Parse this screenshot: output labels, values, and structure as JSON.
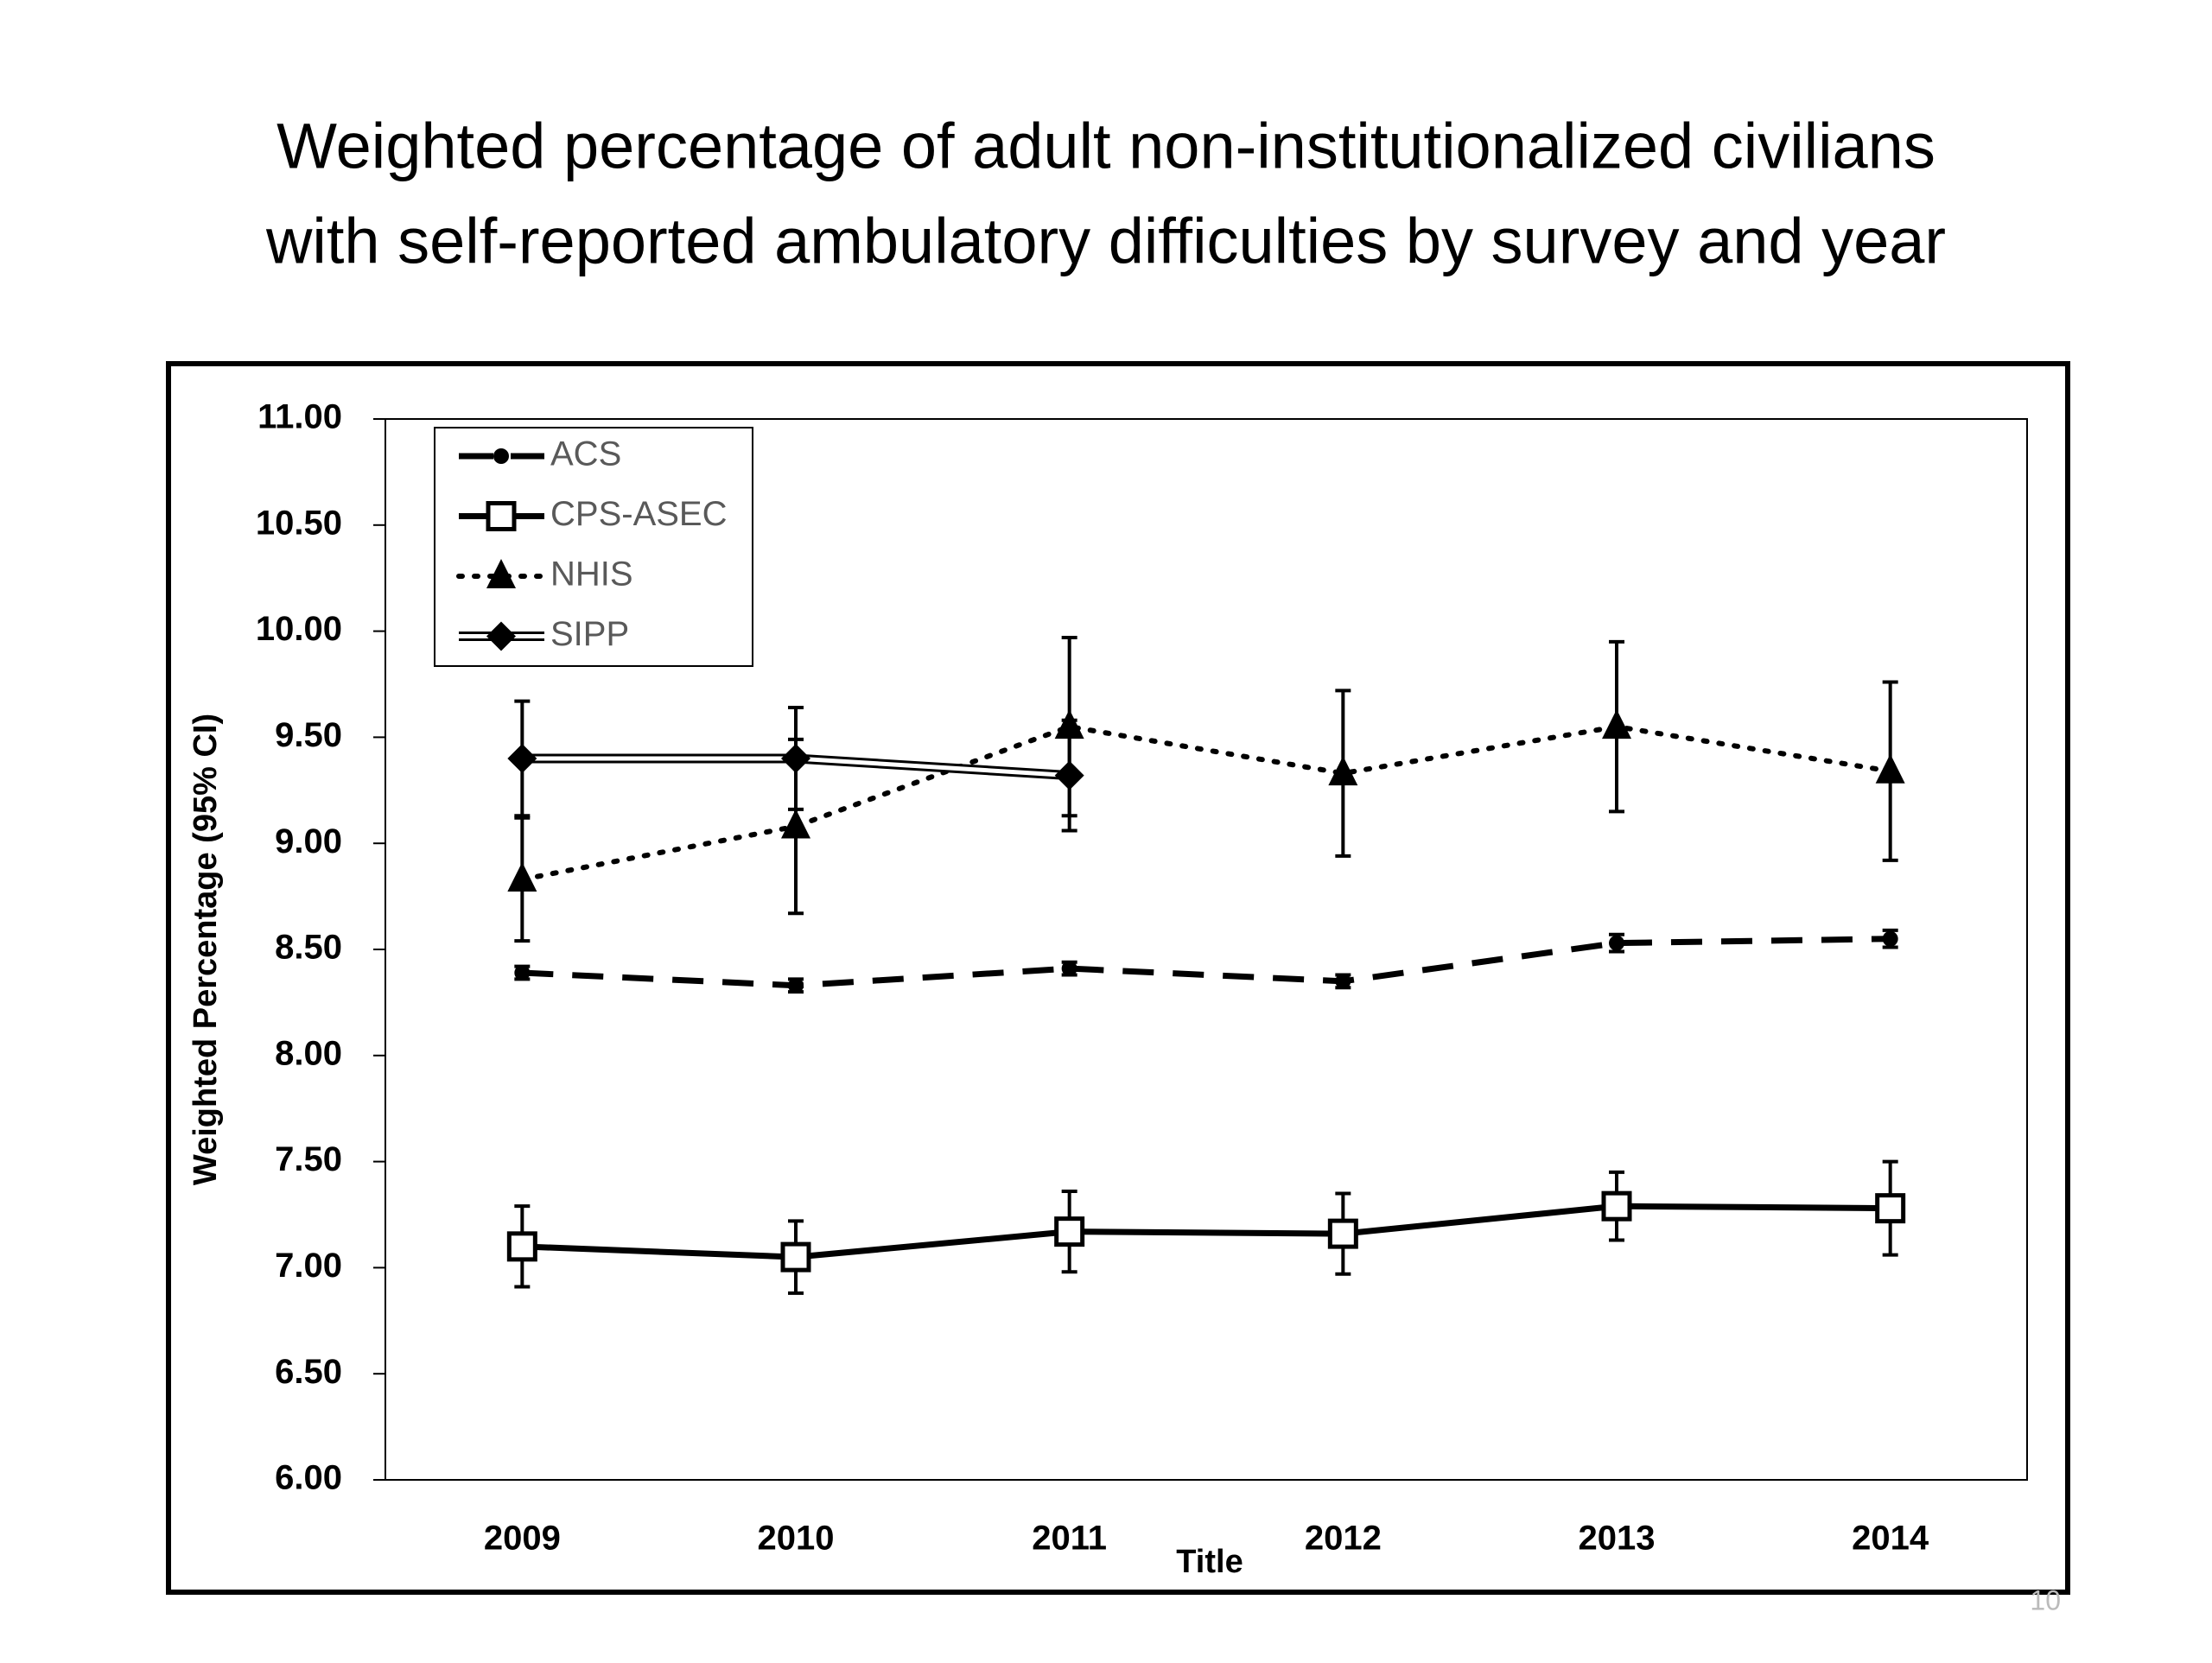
{
  "chart_data": {
    "type": "line",
    "title": [
      "Weighted percentage of adult non-institutionalized civilians",
      "with self-reported ambulatory difficulties by survey and year"
    ],
    "x_label": "Title",
    "y_label": "Weighted Percentage (95% CI)",
    "categories": [
      "2009",
      "2010",
      "2011",
      "2012",
      "2013",
      "2014"
    ],
    "ylim": [
      6,
      11
    ],
    "yticks": [
      {
        "value": 6,
        "label": "6.00"
      },
      {
        "value": 6.5,
        "label": "6.50"
      },
      {
        "value": 7,
        "label": "7.00"
      },
      {
        "value": 7.5,
        "label": "7.50"
      },
      {
        "value": 8,
        "label": "8.00"
      },
      {
        "value": 8.5,
        "label": "8.50"
      },
      {
        "value": 9,
        "label": "9.00"
      },
      {
        "value": 9.5,
        "label": "9.50"
      },
      {
        "value": 10,
        "label": "10.00"
      },
      {
        "value": 10.5,
        "label": "10.50"
      },
      {
        "value": 11,
        "label": "11.00"
      }
    ],
    "legend": "upper left",
    "series": [
      {
        "name": "ACS",
        "color": "#000000",
        "line_style": "dashed",
        "marker": "circle",
        "values": [
          8.39,
          8.33,
          8.41,
          8.35,
          8.53,
          8.55
        ],
        "errors": [
          0.03,
          0.03,
          0.03,
          0.03,
          0.04,
          0.04
        ]
      },
      {
        "name": "CPS-ASEC",
        "color": "#000000",
        "line_style": "solid",
        "marker": "square",
        "values": [
          7.1,
          7.05,
          7.17,
          7.16,
          7.29,
          7.28
        ],
        "errors": [
          0.19,
          0.17,
          0.19,
          0.19,
          0.16,
          0.22
        ]
      },
      {
        "name": "NHIS",
        "color": "#000000",
        "line_style": "dotted",
        "marker": "triangle",
        "values": [
          8.83,
          9.08,
          9.55,
          9.33,
          9.55,
          9.34
        ],
        "errors": [
          0.29,
          0.41,
          0.42,
          0.39,
          0.4,
          0.42
        ]
      },
      {
        "name": "SIPP",
        "color": "#000000",
        "line_style": "double",
        "marker": "diamond",
        "values": [
          9.4,
          9.4,
          9.32,
          null,
          null,
          null
        ],
        "errors": [
          0.27,
          0.24,
          0.26,
          null,
          null,
          null
        ]
      }
    ],
    "page_number": "10"
  }
}
